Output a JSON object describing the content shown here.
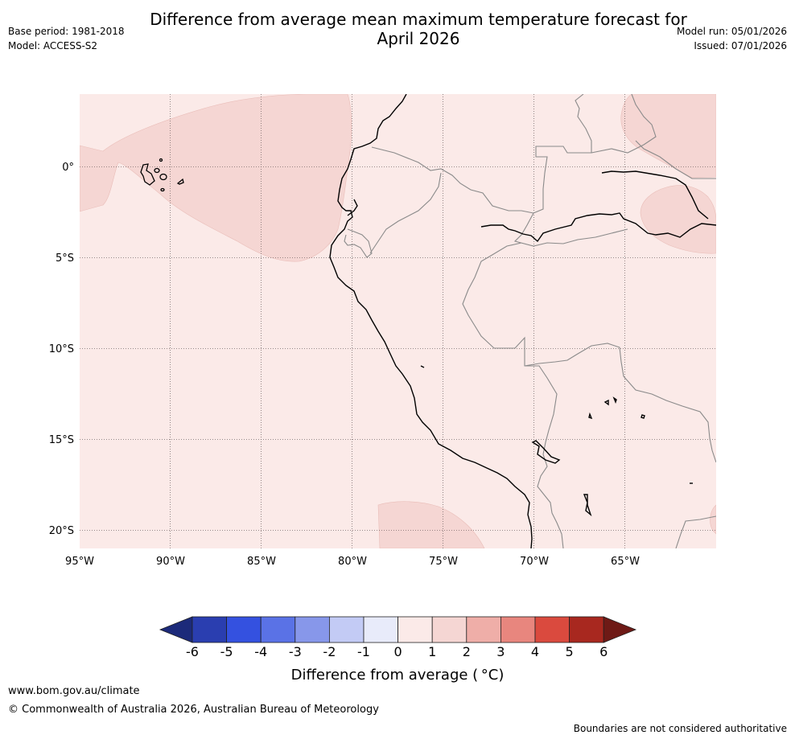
{
  "title": {
    "line1": "Difference from average mean maximum temperature forecast for",
    "line2": "April 2026"
  },
  "meta_left": {
    "base_period": "Base period: 1981-2018",
    "model": "Model: ACCESS-S2"
  },
  "meta_right": {
    "model_run": "Model run: 05/01/2026",
    "issued": "Issued: 07/01/2026"
  },
  "map": {
    "lon_ticks": [
      "95°W",
      "90°W",
      "85°W",
      "80°W",
      "75°W",
      "70°W",
      "65°W"
    ],
    "lat_ticks": [
      "0°",
      "5°S",
      "10°S",
      "15°S",
      "20°S"
    ],
    "colors": {
      "ocean_land_base": "#fbeae8",
      "anomaly_1_2": "#f5d6d3",
      "coastline": "#000000",
      "border": "#8a8a8a"
    }
  },
  "colorbar": {
    "labels": [
      "-6",
      "-5",
      "-4",
      "-3",
      "-2",
      "-1",
      "0",
      "1",
      "2",
      "3",
      "4",
      "5",
      "6"
    ],
    "colors": [
      "#1c2a7a",
      "#2a3eb0",
      "#3451e0",
      "#5a72e6",
      "#8797ea",
      "#c3cbf5",
      "#e8ebfa",
      "#fbeae8",
      "#f5d6d3",
      "#efaea8",
      "#e8867e",
      "#da4a3e",
      "#a8281f",
      "#6e1a16"
    ],
    "title": "Difference from average ( °C)"
  },
  "footer": {
    "url": "www.bom.gov.au/climate",
    "copyright": "© Commonwealth of Australia 2026, Australian Bureau of Meteorology",
    "disclaimer": "Boundaries are not considered authoritative"
  }
}
